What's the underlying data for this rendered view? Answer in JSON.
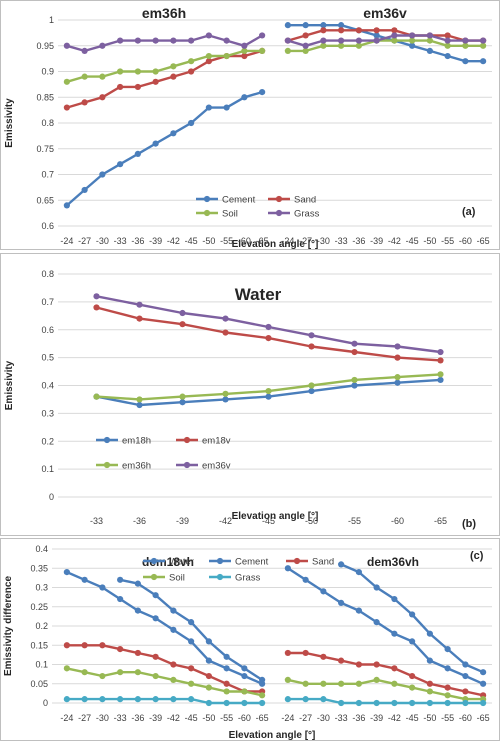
{
  "colors": {
    "Cement": "#4a7ebb",
    "Sand": "#be4b48",
    "Soil": "#98b954",
    "Grass": "#7d60a0",
    "Water": "#4a7ebb",
    "em18h": "#4a7ebb",
    "em18v": "#be4b48",
    "em36h": "#98b954",
    "em36v": "#7d60a0",
    "GrassC": "#46aac5",
    "grid": "#d9d9d9",
    "frame": "#bfbfbf"
  },
  "chart_data": [
    {
      "id": "a",
      "type": "line",
      "panel_label": "(a)",
      "titles": [
        "em36h",
        "em36v"
      ],
      "xlabel": "Elevation angle [°]",
      "ylabel": "Emissivity",
      "ylim": [
        0.6,
        1.0
      ],
      "ytick_step": 0.05,
      "yticks": [
        "0.6",
        "0.65",
        "0.7",
        "0.75",
        "0.8",
        "0.85",
        "0.9",
        "0.95",
        "1"
      ],
      "x": [
        "-24",
        "-27",
        "-30",
        "-33",
        "-36",
        "-39",
        "-42",
        "-45",
        "-50",
        "-55",
        "-60",
        "-65"
      ],
      "legend": [
        "Cement",
        "Sand",
        "Soil",
        "Grass"
      ],
      "groups": [
        {
          "series": [
            {
              "name": "Cement",
              "values": [
                0.64,
                0.67,
                0.7,
                0.72,
                0.74,
                0.76,
                0.78,
                0.8,
                0.83,
                0.83,
                0.85,
                0.86
              ]
            },
            {
              "name": "Sand",
              "values": [
                0.83,
                0.84,
                0.85,
                0.87,
                0.87,
                0.88,
                0.89,
                0.9,
                0.92,
                0.93,
                0.93,
                0.94
              ]
            },
            {
              "name": "Soil",
              "values": [
                0.88,
                0.89,
                0.89,
                0.9,
                0.9,
                0.9,
                0.91,
                0.92,
                0.93,
                0.93,
                0.94,
                0.94
              ]
            },
            {
              "name": "Grass",
              "values": [
                0.95,
                0.94,
                0.95,
                0.96,
                0.96,
                0.96,
                0.96,
                0.96,
                0.97,
                0.96,
                0.95,
                0.97
              ]
            }
          ]
        },
        {
          "series": [
            {
              "name": "Cement",
              "values": [
                0.99,
                0.99,
                0.99,
                0.99,
                0.98,
                0.97,
                0.96,
                0.95,
                0.94,
                0.93,
                0.92,
                0.92
              ]
            },
            {
              "name": "Sand",
              "values": [
                0.96,
                0.97,
                0.98,
                0.98,
                0.98,
                0.98,
                0.98,
                0.97,
                0.97,
                0.97,
                0.96,
                0.96
              ]
            },
            {
              "name": "Soil",
              "values": [
                0.94,
                0.94,
                0.95,
                0.95,
                0.95,
                0.96,
                0.96,
                0.96,
                0.96,
                0.95,
                0.95,
                0.95
              ]
            },
            {
              "name": "Grass",
              "values": [
                0.96,
                0.95,
                0.96,
                0.96,
                0.96,
                0.96,
                0.97,
                0.97,
                0.97,
                0.96,
                0.96,
                0.96
              ]
            }
          ]
        }
      ]
    },
    {
      "id": "b",
      "type": "line",
      "panel_label": "(b)",
      "titles": [
        "Water"
      ],
      "xlabel": "Elevation angle [°]",
      "ylabel": "Emissivity",
      "ylim": [
        0.0,
        0.8
      ],
      "ytick_step": 0.1,
      "yticks": [
        "0",
        "0.1",
        "0.2",
        "0.3",
        "0.4",
        "0.5",
        "0.6",
        "0.7",
        "0.8"
      ],
      "x": [
        "-33",
        "-36",
        "-39",
        "-42",
        "-45",
        "-50",
        "-55",
        "-60",
        "-65"
      ],
      "legend": [
        "em18h",
        "em18v",
        "em36h",
        "em36v"
      ],
      "groups": [
        {
          "series": [
            {
              "name": "em18h",
              "values": [
                0.36,
                0.33,
                0.34,
                0.35,
                0.36,
                0.38,
                0.4,
                0.41,
                0.42
              ]
            },
            {
              "name": "em18v",
              "values": [
                0.68,
                0.64,
                0.62,
                0.59,
                0.57,
                0.54,
                0.52,
                0.5,
                0.49
              ]
            },
            {
              "name": "em36h",
              "values": [
                0.36,
                0.35,
                0.36,
                0.37,
                0.38,
                0.4,
                0.42,
                0.43,
                0.44
              ]
            },
            {
              "name": "em36v",
              "values": [
                0.72,
                0.69,
                0.66,
                0.64,
                0.61,
                0.58,
                0.55,
                0.54,
                0.52
              ]
            }
          ]
        }
      ]
    },
    {
      "id": "c",
      "type": "line",
      "panel_label": "(c)",
      "titles": [
        "dem18vh",
        "dem36vh"
      ],
      "xlabel": "Elevation angle [°]",
      "ylabel": "Emissivity difference",
      "ylim": [
        0.0,
        0.4
      ],
      "ytick_step": 0.05,
      "yticks": [
        "0",
        "0.05",
        "0.1",
        "0.15",
        "0.2",
        "0.25",
        "0.3",
        "0.35",
        "0.4"
      ],
      "x": [
        "-24",
        "-27",
        "-30",
        "-33",
        "-36",
        "-39",
        "-42",
        "-45",
        "-50",
        "-55",
        "-60",
        "-65"
      ],
      "legend": [
        "Water",
        "Cement",
        "Sand",
        "Soil",
        "Grass"
      ],
      "groups": [
        {
          "series": [
            {
              "name": "Water",
              "values": [
                null,
                null,
                null,
                0.32,
                0.31,
                0.28,
                0.24,
                0.21,
                0.16,
                0.12,
                0.09,
                0.06
              ]
            },
            {
              "name": "Cement",
              "values": [
                0.34,
                0.32,
                0.3,
                0.27,
                0.24,
                0.22,
                0.19,
                0.16,
                0.11,
                0.09,
                0.07,
                0.05
              ]
            },
            {
              "name": "Sand",
              "values": [
                0.15,
                0.15,
                0.15,
                0.14,
                0.13,
                0.12,
                0.1,
                0.09,
                0.07,
                0.05,
                0.03,
                0.03
              ]
            },
            {
              "name": "Soil",
              "values": [
                0.09,
                0.08,
                0.07,
                0.08,
                0.08,
                0.07,
                0.06,
                0.05,
                0.04,
                0.03,
                0.03,
                0.02
              ]
            },
            {
              "name": "Grass",
              "values": [
                0.01,
                0.01,
                0.01,
                0.01,
                0.01,
                0.01,
                0.01,
                0.01,
                0.0,
                0.0,
                0.0,
                0.0
              ]
            }
          ]
        },
        {
          "series": [
            {
              "name": "Water",
              "values": [
                null,
                null,
                null,
                0.36,
                0.34,
                0.3,
                0.27,
                0.23,
                0.18,
                0.14,
                0.1,
                0.08
              ]
            },
            {
              "name": "Cement",
              "values": [
                0.35,
                0.32,
                0.29,
                0.26,
                0.24,
                0.21,
                0.18,
                0.16,
                0.11,
                0.09,
                0.07,
                0.05
              ]
            },
            {
              "name": "Sand",
              "values": [
                0.13,
                0.13,
                0.12,
                0.11,
                0.1,
                0.1,
                0.09,
                0.07,
                0.05,
                0.04,
                0.03,
                0.02
              ]
            },
            {
              "name": "Soil",
              "values": [
                0.06,
                0.05,
                0.05,
                0.05,
                0.05,
                0.06,
                0.05,
                0.04,
                0.03,
                0.02,
                0.01,
                0.01
              ]
            },
            {
              "name": "Grass",
              "values": [
                0.01,
                0.01,
                0.01,
                0.0,
                0.0,
                0.0,
                0.0,
                0.0,
                0.0,
                0.0,
                0.0,
                0.0
              ]
            }
          ]
        }
      ]
    }
  ]
}
